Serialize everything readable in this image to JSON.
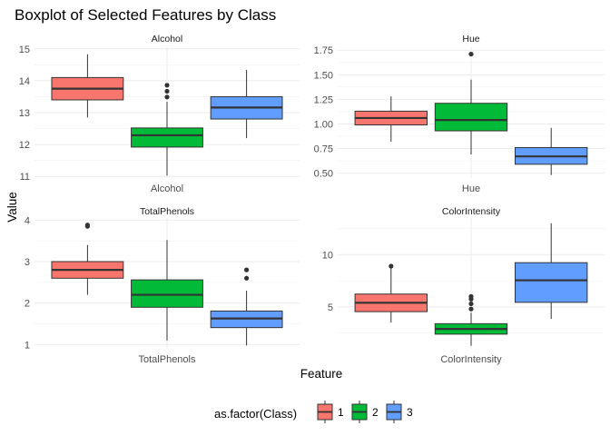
{
  "chart_data": {
    "type": "boxplot",
    "title": "Boxplot of Selected Features by Class",
    "xlabel": "Feature",
    "ylabel": "Value",
    "grid": true,
    "legend": {
      "title": "as.factor(Class)",
      "position": "bottom",
      "entries": [
        {
          "label": "1",
          "color": "#F8766D"
        },
        {
          "label": "2",
          "color": "#00BA38"
        },
        {
          "label": "3",
          "color": "#619CFF"
        }
      ]
    },
    "facets": [
      {
        "name": "Alcohol",
        "x_tick": "Alcohol",
        "ylim": [
          10.95,
          15.05
        ],
        "y_ticks": [
          11,
          12,
          13,
          14,
          15
        ],
        "boxes": [
          {
            "class": "1",
            "whisker_low": 12.85,
            "q1": 13.4,
            "median": 13.75,
            "q3": 14.1,
            "whisker_high": 14.83,
            "outliers": []
          },
          {
            "class": "2",
            "whisker_low": 11.03,
            "q1": 11.92,
            "median": 12.29,
            "q3": 12.52,
            "whisker_high": 13.34,
            "outliers": [
              13.49,
              13.67,
              13.86
            ]
          },
          {
            "class": "3",
            "whisker_low": 12.2,
            "q1": 12.8,
            "median": 13.16,
            "q3": 13.5,
            "whisker_high": 14.34,
            "outliers": []
          }
        ]
      },
      {
        "name": "Hue",
        "x_tick": "Hue",
        "ylim": [
          0.45,
          1.78
        ],
        "y_ticks": [
          0.5,
          0.75,
          1.0,
          1.25,
          1.5,
          1.75
        ],
        "y_tick_labels": [
          "0.50",
          "0.75",
          "1.00",
          "1.25",
          "1.50",
          "1.75"
        ],
        "boxes": [
          {
            "class": "1",
            "whisker_low": 0.82,
            "q1": 0.99,
            "median": 1.06,
            "q3": 1.13,
            "whisker_high": 1.28,
            "outliers": []
          },
          {
            "class": "2",
            "whisker_low": 0.69,
            "q1": 0.93,
            "median": 1.04,
            "q3": 1.21,
            "whisker_high": 1.45,
            "outliers": [
              1.71
            ]
          },
          {
            "class": "3",
            "whisker_low": 0.48,
            "q1": 0.59,
            "median": 0.67,
            "q3": 0.76,
            "whisker_high": 0.96,
            "outliers": []
          }
        ]
      },
      {
        "name": "TotalPhenols",
        "x_tick": "TotalPhenols",
        "ylim": [
          0.9,
          4.05
        ],
        "y_ticks": [
          1,
          2,
          3,
          4
        ],
        "boxes": [
          {
            "class": "1",
            "whisker_low": 2.2,
            "q1": 2.6,
            "median": 2.8,
            "q3": 3.0,
            "whisker_high": 3.4,
            "outliers": [
              3.85,
              3.88
            ]
          },
          {
            "class": "2",
            "whisker_low": 1.1,
            "q1": 1.9,
            "median": 2.2,
            "q3": 2.56,
            "whisker_high": 3.52,
            "outliers": []
          },
          {
            "class": "3",
            "whisker_low": 0.98,
            "q1": 1.41,
            "median": 1.63,
            "q3": 1.81,
            "whisker_high": 2.3,
            "outliers": [
              2.6,
              2.8
            ]
          }
        ]
      },
      {
        "name": "ColorIntensity",
        "x_tick": "ColorIntensity",
        "ylim": [
          1.0,
          13.5
        ],
        "y_ticks": [
          5,
          10
        ],
        "boxes": [
          {
            "class": "1",
            "whisker_low": 3.52,
            "q1": 4.55,
            "median": 5.4,
            "q3": 6.23,
            "whisker_high": 8.9,
            "outliers": [
              8.9
            ]
          },
          {
            "class": "2",
            "whisker_low": 1.28,
            "q1": 2.4,
            "median": 2.9,
            "q3": 3.4,
            "whisker_high": 4.45,
            "outliers": [
              4.8,
              5.3,
              5.75,
              6.0
            ]
          },
          {
            "class": "3",
            "whisker_low": 3.85,
            "q1": 5.44,
            "median": 7.55,
            "q3": 9.23,
            "whisker_high": 13.0,
            "outliers": []
          }
        ]
      }
    ]
  }
}
